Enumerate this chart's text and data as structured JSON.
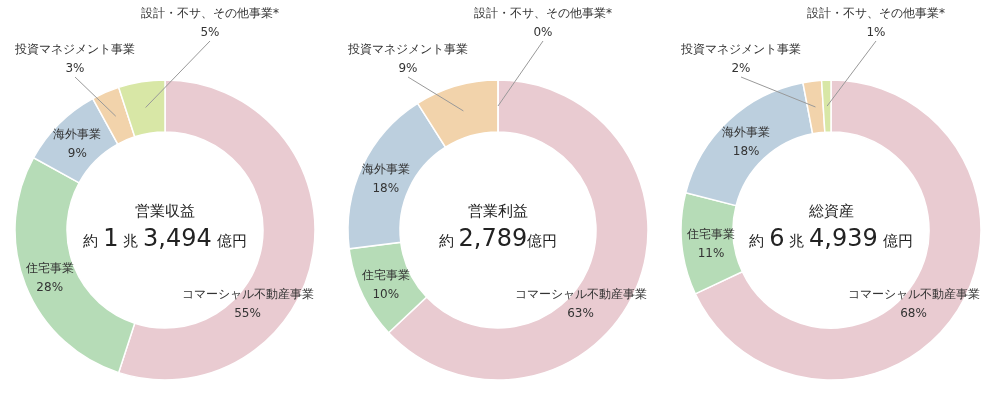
{
  "chart_data": [
    {
      "type": "donut",
      "title": "営業収益",
      "subtitle": "約 1 兆 3,494 億円",
      "categories": [
        "コマーシャル不動産事業",
        "住宅事業",
        "海外事業",
        "投資マネジメント事業",
        "設計・不サ、その他事業*"
      ],
      "values": [
        55,
        28,
        9,
        3,
        5
      ],
      "colors": [
        "#e9cbd1",
        "#b6dcb7",
        "#bccfde",
        "#f2d3ab",
        "#d8e7a6"
      ],
      "value_labels": [
        "55%",
        "28%",
        "9%",
        "3%",
        "5%"
      ]
    },
    {
      "type": "donut",
      "title": "営業利益",
      "subtitle": "約 2,789億円",
      "categories": [
        "コマーシャル不動産事業",
        "住宅事業",
        "海外事業",
        "投資マネジメント事業",
        "設計・不サ、その他事業*"
      ],
      "values": [
        63,
        10,
        18,
        9,
        0
      ],
      "colors": [
        "#e9cbd1",
        "#b6dcb7",
        "#bccfde",
        "#f2d3ab",
        "#d8e7a6"
      ],
      "value_labels": [
        "63%",
        "10%",
        "18%",
        "9%",
        "0%"
      ]
    },
    {
      "type": "donut",
      "title": "総資産",
      "subtitle": "約 6 兆 4,939 億円",
      "categories": [
        "コマーシャル不動産事業",
        "住宅事業",
        "海外事業",
        "投資マネジメント事業",
        "設計・不サ、その他事業*"
      ],
      "values": [
        68,
        11,
        18,
        2,
        1
      ],
      "colors": [
        "#e9cbd1",
        "#b6dcb7",
        "#bccfde",
        "#f2d3ab",
        "#d8e7a6"
      ],
      "value_labels": [
        "68%",
        "11%",
        "18%",
        "2%",
        "1%"
      ]
    }
  ]
}
